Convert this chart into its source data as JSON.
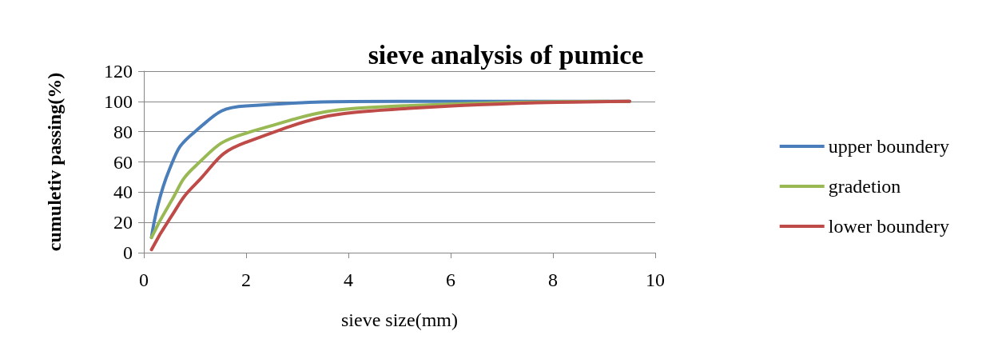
{
  "chart_data": {
    "type": "line",
    "title": "sieve analysis of pumice",
    "xlabel": "sieve size(mm)",
    "ylabel": "cumuletiv passing(%)",
    "x": [
      0.15,
      0.5,
      1,
      2,
      5,
      9.5
    ],
    "series": [
      {
        "name": "upper boundery",
        "color": "#4a7ebb",
        "values": [
          10,
          55,
          80,
          97,
          100,
          100
        ]
      },
      {
        "name": "gradetion",
        "color": "#98b954",
        "values": [
          10,
          32,
          57,
          79,
          97,
          100
        ]
      },
      {
        "name": "lower boundery",
        "color": "#be4b48",
        "values": [
          2,
          22,
          45,
          73,
          95,
          100
        ]
      }
    ],
    "xlim": [
      0,
      10
    ],
    "xticks": [
      0,
      2,
      4,
      6,
      8,
      10
    ],
    "ylim": [
      0,
      120
    ],
    "yticks": [
      0,
      20,
      40,
      60,
      80,
      100,
      120
    ],
    "grid": "y",
    "legend": "right",
    "marker": "none",
    "line_style": "solid"
  }
}
